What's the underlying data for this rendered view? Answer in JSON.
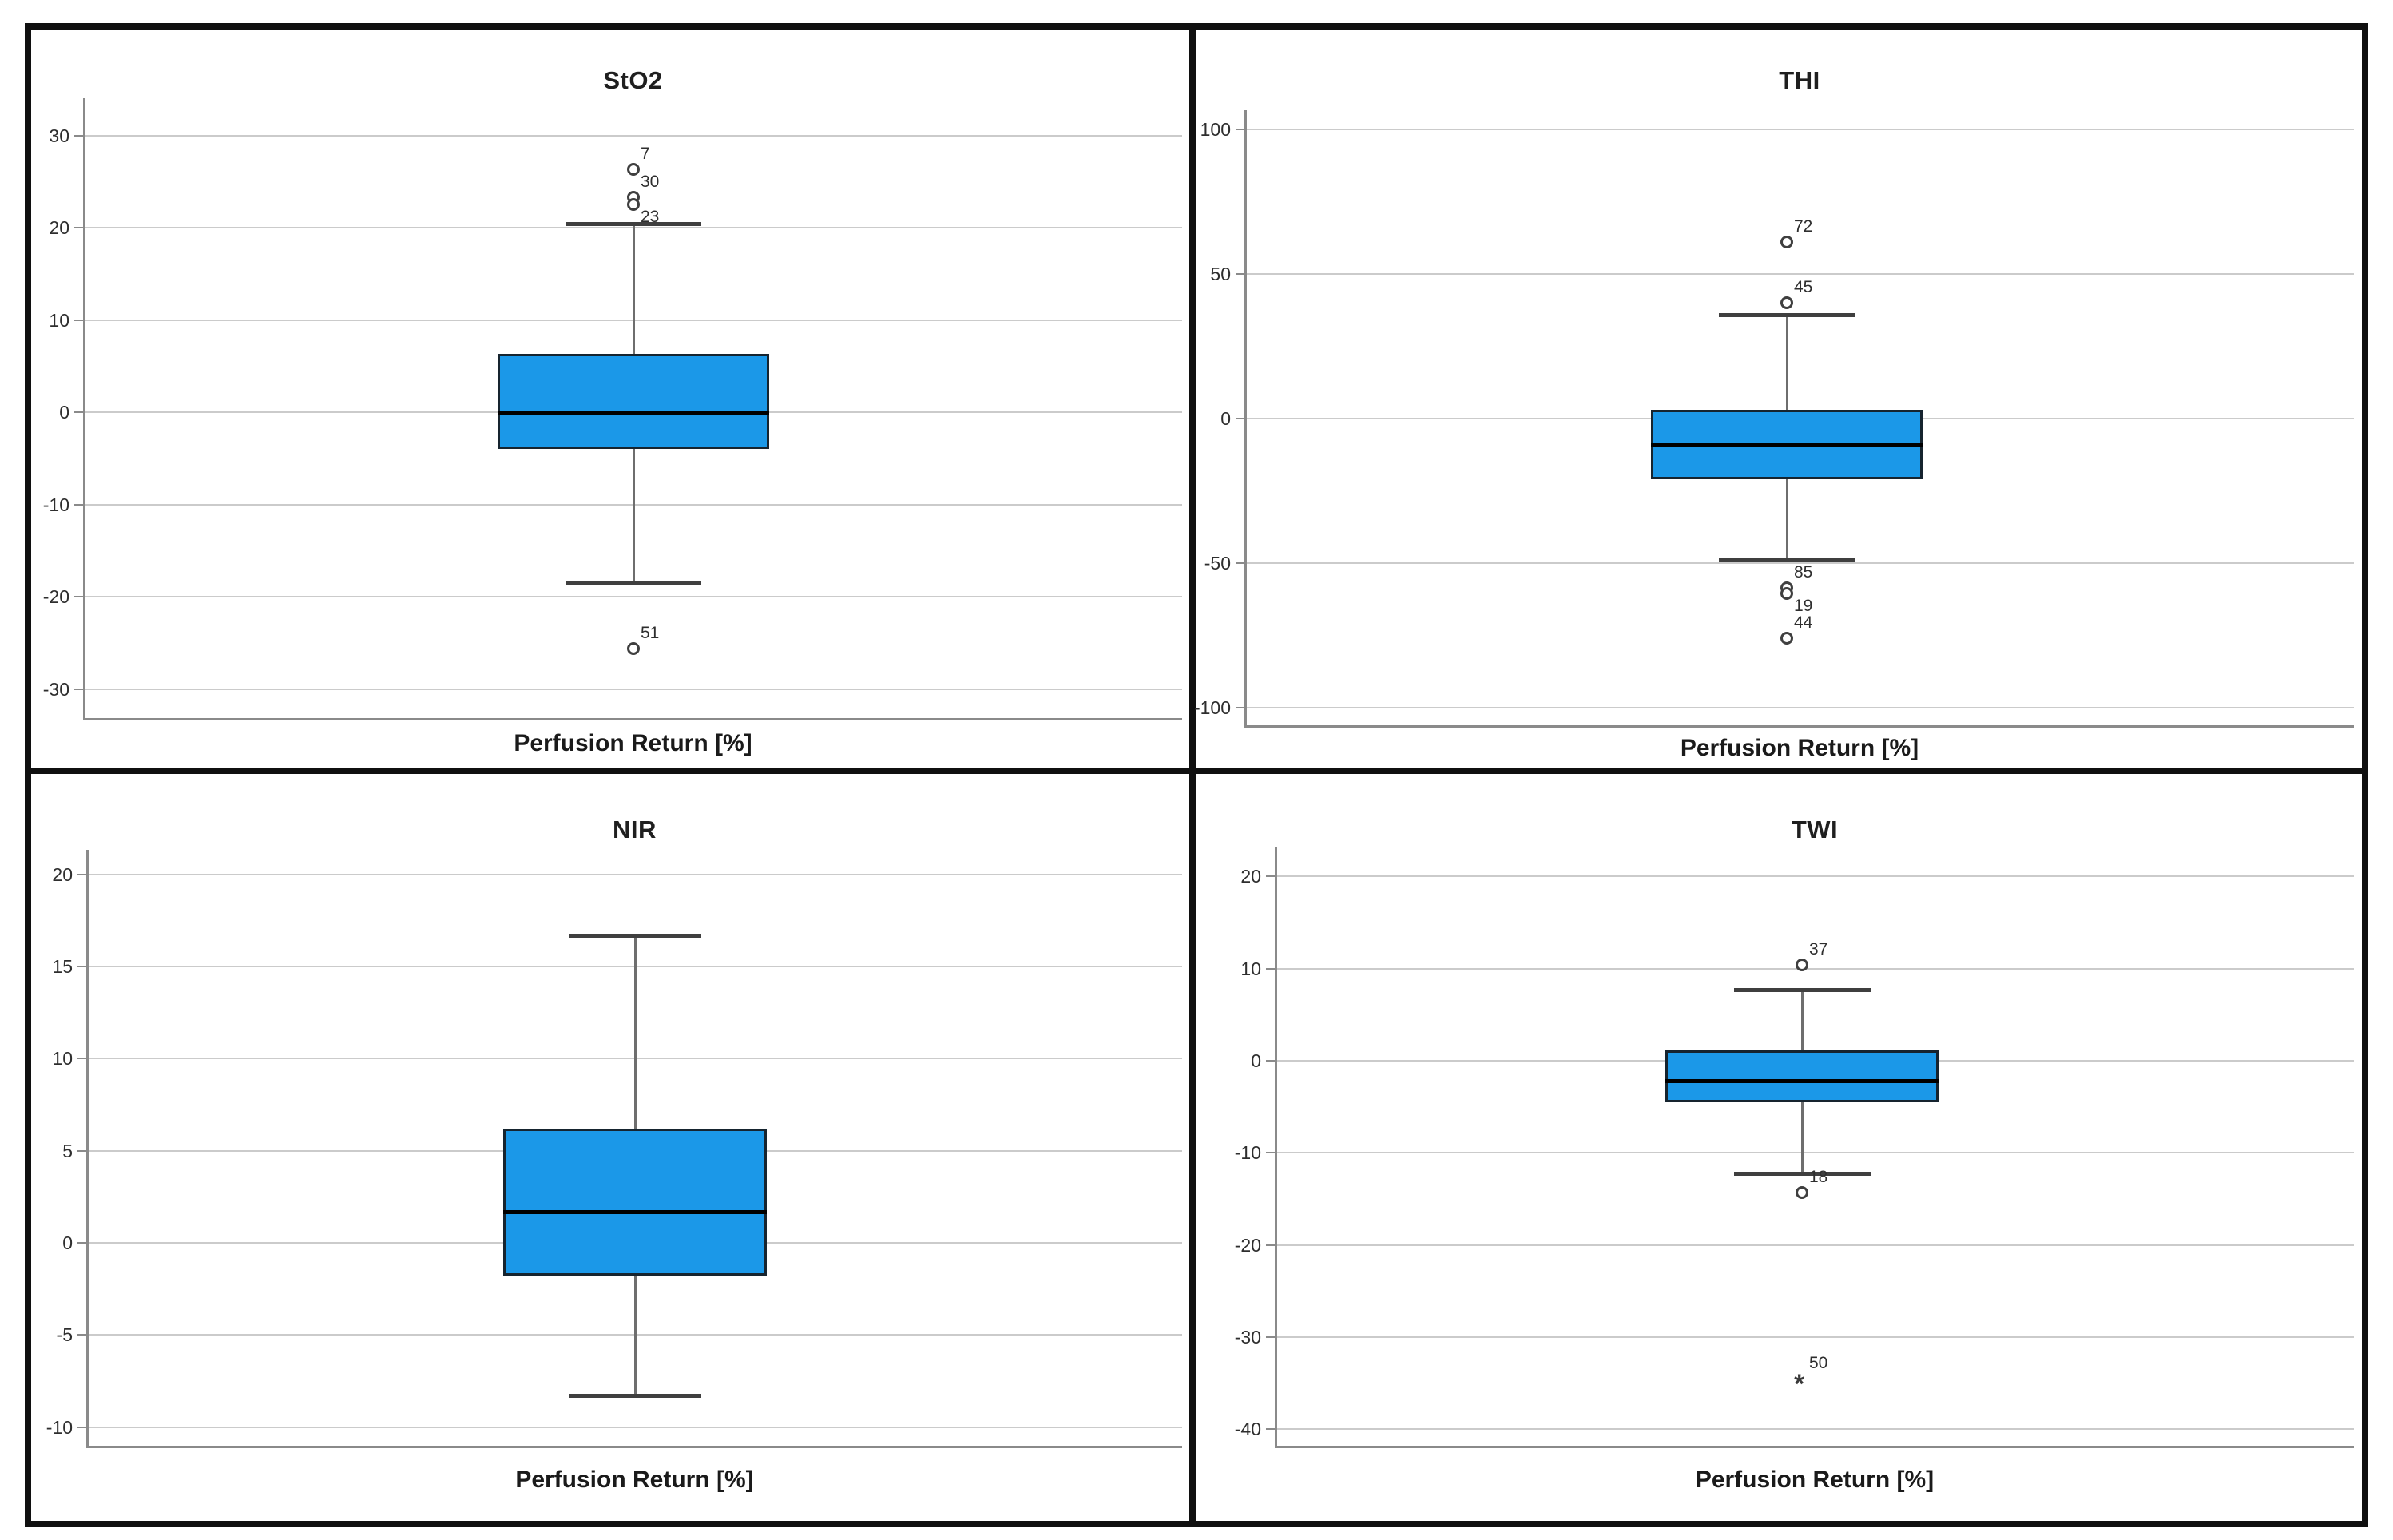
{
  "figure": {
    "background": "#ffffff",
    "frame_color": "#101010"
  },
  "colors": {
    "box_fill": "#1B98E8",
    "box_border": "#16242F",
    "median": "#000000",
    "whisker": "#6E6E6E",
    "cap": "#3F3F3F",
    "grid": "#CBCBCB",
    "axis": "#8A8A8A",
    "outlier": "#3F3F3F",
    "text": "#1F1F1F"
  },
  "chart_data": [
    {
      "type": "box",
      "id": "sto2",
      "title": "StO2",
      "xlabel": "Perfusion Return [%]",
      "yticks": [
        30,
        20,
        10,
        0,
        -10,
        -20,
        -30
      ],
      "ylim": [
        -33.5,
        33.5
      ],
      "grid": true,
      "legend": "none",
      "box": {
        "whisker_high": 20.4,
        "q3": 6.3,
        "median": -0.1,
        "q1": -4.0,
        "whisker_low": -18.4
      },
      "outliers": [
        {
          "value": 26.3,
          "case_label": "7",
          "marker": "circle",
          "label_pos": "above-right"
        },
        {
          "value": 23.3,
          "case_label": "30",
          "marker": "circle",
          "label_pos": "above-right"
        },
        {
          "value": 22.5,
          "case_label": "23",
          "marker": "circle",
          "label_pos": "below-right"
        },
        {
          "value": -25.6,
          "case_label": "51",
          "marker": "circle",
          "label_pos": "above-right"
        }
      ]
    },
    {
      "type": "box",
      "id": "thi",
      "title": "THI",
      "xlabel": "Perfusion Return [%]",
      "yticks": [
        100,
        50,
        0,
        -50,
        -100
      ],
      "ylim": [
        -112,
        112
      ],
      "grid": true,
      "legend": "none",
      "box": {
        "whisker_high": 36.0,
        "q3": 3.0,
        "median": -9.0,
        "q1": -21.0,
        "whisker_low": -49.0
      },
      "outliers": [
        {
          "value": 61.0,
          "case_label": "72",
          "marker": "circle",
          "label_pos": "above-right"
        },
        {
          "value": 40.0,
          "case_label": "45",
          "marker": "circle",
          "label_pos": "above-right"
        },
        {
          "value": -58.5,
          "case_label": "85",
          "marker": "circle",
          "label_pos": "above-right"
        },
        {
          "value": -60.5,
          "case_label": "19",
          "marker": "circle",
          "label_pos": "below-right"
        },
        {
          "value": -76.0,
          "case_label": "44",
          "marker": "circle",
          "label_pos": "above-right"
        }
      ]
    },
    {
      "type": "box",
      "id": "nir",
      "title": "NIR",
      "xlabel": "Perfusion Return [%]",
      "yticks": [
        20,
        15,
        10,
        5,
        0,
        -5,
        -10
      ],
      "ylim": [
        -11.5,
        21.5
      ],
      "grid": true,
      "legend": "none",
      "box": {
        "whisker_high": 16.7,
        "q3": 6.2,
        "median": 1.7,
        "q1": -1.8,
        "whisker_low": -8.3
      },
      "outliers": []
    },
    {
      "type": "box",
      "id": "twi",
      "title": "TWI",
      "xlabel": "Perfusion Return [%]",
      "yticks": [
        20,
        10,
        0,
        -10,
        -20,
        -30,
        -40
      ],
      "ylim": [
        -42.5,
        22.5
      ],
      "grid": true,
      "legend": "none",
      "box": {
        "whisker_high": 7.7,
        "q3": 1.1,
        "median": -2.2,
        "q1": -4.5,
        "whisker_low": -12.2
      },
      "outliers": [
        {
          "value": 10.4,
          "case_label": "37",
          "marker": "circle",
          "label_pos": "above-right"
        },
        {
          "value": -14.3,
          "case_label": "18",
          "marker": "circle",
          "label_pos": "above-right"
        },
        {
          "value": -34.5,
          "case_label": "50",
          "marker": "asterisk",
          "label_pos": "above-right"
        }
      ]
    }
  ]
}
